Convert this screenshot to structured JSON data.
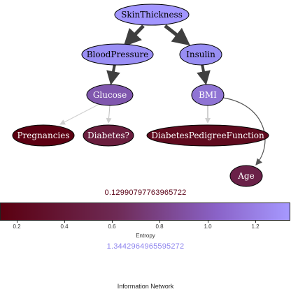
{
  "graph": {
    "nodes": [
      {
        "id": "SkinThickness",
        "label": "SkinThickness",
        "color": "#a296ff"
      },
      {
        "id": "BloodPressure",
        "label": "BloodPressure",
        "color": "#9a8ff5"
      },
      {
        "id": "Insulin",
        "label": "Insulin",
        "color": "#988ef3"
      },
      {
        "id": "Glucose",
        "label": "Glucose",
        "color": "#8057ae"
      },
      {
        "id": "BMI",
        "label": "BMI",
        "color": "#8f74d4"
      },
      {
        "id": "Pregnancies",
        "label": "Pregnancies",
        "color": "#5c0012"
      },
      {
        "id": "Diabetes",
        "label": "Diabetes?",
        "color": "#6a1d3d"
      },
      {
        "id": "DiabetesPedigreeFunction",
        "label": "DiabetesPedigreeFunction",
        "color": "#5f0a1e"
      },
      {
        "id": "Age",
        "label": "Age",
        "color": "#6a2148"
      }
    ],
    "edges": [
      {
        "from": "SkinThickness",
        "to": "BloodPressure",
        "weight": "heavy"
      },
      {
        "from": "SkinThickness",
        "to": "Insulin",
        "weight": "heavy"
      },
      {
        "from": "BloodPressure",
        "to": "Glucose",
        "weight": "heavy"
      },
      {
        "from": "Insulin",
        "to": "BMI",
        "weight": "heavy"
      },
      {
        "from": "Glucose",
        "to": "Pregnancies",
        "weight": "light"
      },
      {
        "from": "Glucose",
        "to": "Diabetes",
        "weight": "light"
      },
      {
        "from": "BMI",
        "to": "DiabetesPedigreeFunction",
        "weight": "light"
      },
      {
        "from": "BMI",
        "to": "Age",
        "weight": "medium"
      }
    ]
  },
  "colorbar": {
    "min_label": "0.12990797763965722",
    "max_label": "1.3442964965595272",
    "min": 0.12990797763965722,
    "max": 1.3442964965595272,
    "ticks": [
      "0.2",
      "0.4",
      "0.6",
      "0.8",
      "1.0",
      "1.2"
    ],
    "tick_values": [
      0.2,
      0.4,
      0.6,
      0.8,
      1.0,
      1.2
    ],
    "axis_label": "Entropy",
    "color_low": "#5a0010",
    "color_high": "#a699ff"
  },
  "caption": "Information Network"
}
